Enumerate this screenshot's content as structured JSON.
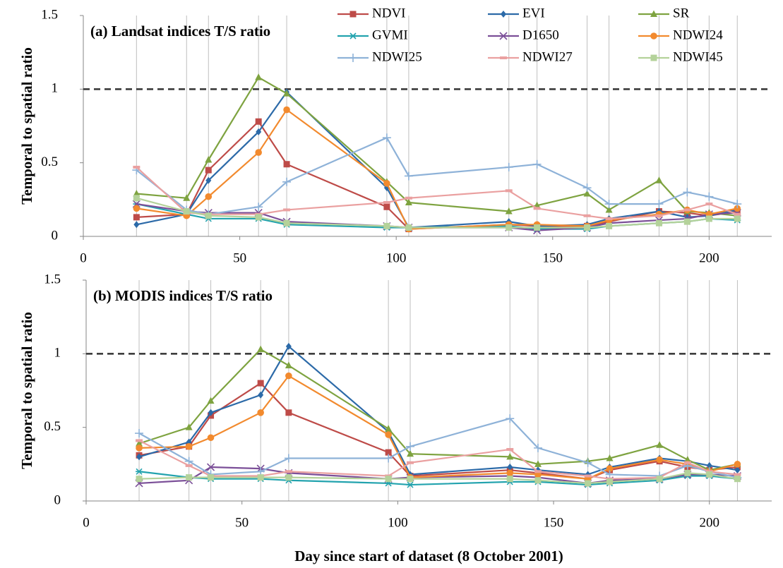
{
  "chart_data": [
    {
      "type": "line",
      "title": "(a) Landsat indices T/S ratio",
      "ylabel": "Temporal  to spatial ratio",
      "x": [
        17,
        33,
        40,
        56,
        65,
        97,
        104,
        136,
        145,
        161,
        168,
        184,
        193,
        200,
        209
      ],
      "xlim": [
        0,
        220
      ],
      "xticks": [
        0,
        50,
        100,
        150,
        200
      ],
      "ylim": [
        0,
        1.5
      ],
      "yticks": [
        0,
        0.5,
        1,
        1.5
      ],
      "reference_line": 1,
      "vertical_grid": true,
      "legend": true,
      "series": [
        {
          "name": "NDVI",
          "color": "#be4b48",
          "marker": "square",
          "values": [
            0.13,
            0.15,
            0.45,
            0.78,
            0.49,
            0.2,
            0.05,
            0.08,
            0.07,
            0.07,
            0.1,
            0.17,
            0.16,
            0.14,
            0.17
          ]
        },
        {
          "name": "EVI",
          "color": "#2c6aa8",
          "marker": "diamond",
          "values": [
            0.08,
            0.15,
            0.38,
            0.71,
            0.98,
            0.33,
            0.06,
            0.1,
            0.07,
            0.08,
            0.12,
            0.17,
            0.13,
            0.14,
            0.18
          ]
        },
        {
          "name": "SR",
          "color": "#7ea340",
          "marker": "triangle",
          "values": [
            0.29,
            0.26,
            0.52,
            1.08,
            0.97,
            0.37,
            0.23,
            0.17,
            0.21,
            0.29,
            0.18,
            0.38,
            0.17,
            0.16,
            0.14
          ]
        },
        {
          "name": "GVMI",
          "color": "#23a3ae",
          "marker": "asterisk",
          "values": [
            0.22,
            0.15,
            0.12,
            0.12,
            0.08,
            0.06,
            0.06,
            0.07,
            0.05,
            0.05,
            0.07,
            0.09,
            0.1,
            0.12,
            0.11
          ]
        },
        {
          "name": "D1650",
          "color": "#7b4f98",
          "marker": "cross",
          "values": [
            0.22,
            0.17,
            0.16,
            0.16,
            0.1,
            0.07,
            0.06,
            0.06,
            0.04,
            0.06,
            0.09,
            0.11,
            0.12,
            0.15,
            0.16
          ]
        },
        {
          "name": "NDWI24",
          "color": "#f28a2e",
          "marker": "circle",
          "values": [
            0.19,
            0.14,
            0.27,
            0.57,
            0.86,
            0.36,
            0.05,
            0.08,
            0.08,
            0.07,
            0.11,
            0.15,
            0.18,
            0.15,
            0.19
          ]
        },
        {
          "name": "NDWI25",
          "color": "#8eb2d8",
          "marker": "plus",
          "values": [
            0.45,
            0.18,
            0.15,
            0.2,
            0.37,
            0.67,
            0.41,
            0.47,
            0.49,
            0.33,
            0.22,
            0.22,
            0.3,
            0.27,
            0.22
          ]
        },
        {
          "name": "NDWI27",
          "color": "#eaa0a0",
          "marker": "dash",
          "values": [
            0.47,
            0.16,
            0.15,
            0.15,
            0.18,
            0.23,
            0.26,
            0.31,
            0.19,
            0.14,
            0.12,
            0.14,
            0.18,
            0.22,
            0.15
          ]
        },
        {
          "name": "NDWI45",
          "color": "#b4d29a",
          "marker": "square",
          "values": [
            0.26,
            0.17,
            0.14,
            0.13,
            0.09,
            0.07,
            0.06,
            0.06,
            0.06,
            0.06,
            0.07,
            0.09,
            0.1,
            0.12,
            0.12
          ]
        }
      ]
    },
    {
      "type": "line",
      "title": "(b) MODIS indices T/S ratio",
      "ylabel": "Temporal  to spatial ratio",
      "xlabel": "Day since start of dataset (8 October 2001)",
      "x": [
        17,
        33,
        40,
        56,
        65,
        97,
        104,
        136,
        145,
        161,
        168,
        184,
        193,
        200,
        209
      ],
      "xlim": [
        0,
        220
      ],
      "xticks": [
        0,
        50,
        100,
        150,
        200
      ],
      "ylim": [
        0,
        1.5
      ],
      "yticks": [
        0,
        0.5,
        1,
        1.5
      ],
      "reference_line": 1,
      "vertical_grid": true,
      "legend": false,
      "series": [
        {
          "name": "NDVI",
          "color": "#be4b48",
          "marker": "square",
          "values": [
            0.31,
            0.37,
            0.58,
            0.8,
            0.6,
            0.33,
            0.17,
            0.21,
            0.19,
            0.15,
            0.21,
            0.27,
            0.23,
            0.21,
            0.23
          ]
        },
        {
          "name": "EVI",
          "color": "#2c6aa8",
          "marker": "diamond",
          "values": [
            0.3,
            0.4,
            0.6,
            0.72,
            1.05,
            0.47,
            0.18,
            0.23,
            0.21,
            0.18,
            0.23,
            0.29,
            0.27,
            0.24,
            0.21
          ]
        },
        {
          "name": "SR",
          "color": "#7ea340",
          "marker": "triangle",
          "values": [
            0.39,
            0.5,
            0.68,
            1.03,
            0.92,
            0.49,
            0.32,
            0.3,
            0.25,
            0.27,
            0.29,
            0.38,
            0.28,
            0.21,
            0.25
          ]
        },
        {
          "name": "GVMI",
          "color": "#23a3ae",
          "marker": "asterisk",
          "values": [
            0.2,
            0.16,
            0.15,
            0.15,
            0.14,
            0.12,
            0.11,
            0.13,
            0.13,
            0.11,
            0.12,
            0.14,
            0.17,
            0.17,
            0.15
          ]
        },
        {
          "name": "D1650",
          "color": "#7b4f98",
          "marker": "cross",
          "values": [
            0.12,
            0.14,
            0.23,
            0.22,
            0.19,
            0.15,
            0.16,
            0.17,
            0.16,
            0.12,
            0.14,
            0.15,
            0.18,
            0.18,
            0.17
          ]
        },
        {
          "name": "NDWI24",
          "color": "#f28a2e",
          "marker": "circle",
          "values": [
            0.36,
            0.37,
            0.43,
            0.6,
            0.85,
            0.45,
            0.16,
            0.19,
            0.18,
            0.15,
            0.22,
            0.28,
            0.25,
            0.2,
            0.25
          ]
        },
        {
          "name": "NDWI25",
          "color": "#8eb2d8",
          "marker": "plus",
          "values": [
            0.46,
            0.27,
            0.18,
            0.2,
            0.29,
            0.29,
            0.37,
            0.56,
            0.36,
            0.26,
            0.18,
            0.17,
            0.24,
            0.2,
            0.16
          ]
        },
        {
          "name": "NDWI27",
          "color": "#eaa0a0",
          "marker": "dash",
          "values": [
            0.41,
            0.24,
            0.17,
            0.17,
            0.2,
            0.17,
            0.26,
            0.35,
            0.2,
            0.17,
            0.15,
            0.16,
            0.26,
            0.2,
            0.18
          ]
        },
        {
          "name": "NDWI45",
          "color": "#b4d29a",
          "marker": "square",
          "values": [
            0.15,
            0.16,
            0.16,
            0.16,
            0.16,
            0.15,
            0.15,
            0.15,
            0.14,
            0.12,
            0.13,
            0.15,
            0.19,
            0.18,
            0.15
          ]
        }
      ]
    }
  ]
}
